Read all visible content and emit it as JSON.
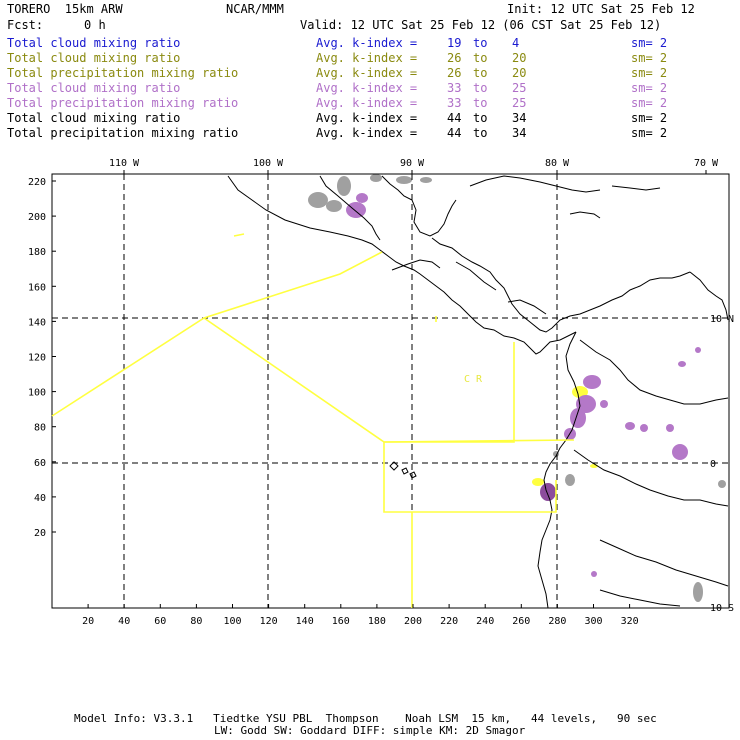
{
  "header": {
    "model": "TORERO  15km ARW",
    "center": "NCAR/MMM",
    "init": "Init: 12 UTC Sat 25 Feb 12",
    "fcst_label": "Fcst:",
    "fcst_value": "0 h",
    "valid": "Valid: 12 UTC Sat 25 Feb 12 (06 CST Sat 25 Feb 12)"
  },
  "legend": [
    {
      "field": "Total cloud mixing ratio",
      "kindex_label": "Avg. k-index =",
      "from": "19",
      "to_word": "to",
      "to": "4",
      "sm": "sm= 2",
      "color": "#1a1ad0"
    },
    {
      "field": "Total cloud mixing ratio",
      "kindex_label": "Avg. k-index =",
      "from": "26",
      "to_word": "to",
      "to": "20",
      "sm": "sm= 2",
      "color": "#8a8a10"
    },
    {
      "field": "Total precipitation mixing ratio",
      "kindex_label": "Avg. k-index =",
      "from": "26",
      "to_word": "to",
      "to": "20",
      "sm": "sm= 2",
      "color": "#8a8a10"
    },
    {
      "field": "Total cloud mixing ratio",
      "kindex_label": "Avg. k-index =",
      "from": "33",
      "to_word": "to",
      "to": "25",
      "sm": "sm= 2",
      "color": "#b070c8"
    },
    {
      "field": "Total precipitation mixing ratio",
      "kindex_label": "Avg. k-index =",
      "from": "33",
      "to_word": "to",
      "to": "25",
      "sm": "sm= 2",
      "color": "#b070c8"
    },
    {
      "field": "Total cloud mixing ratio",
      "kindex_label": "Avg. k-index =",
      "from": "44",
      "to_word": "to",
      "to": "34",
      "sm": "sm= 2",
      "color": "#000000"
    },
    {
      "field": "Total precipitation mixing ratio",
      "kindex_label": "Avg. k-index =",
      "from": "44",
      "to_word": "to",
      "to": "34",
      "sm": "sm= 2",
      "color": "#000000"
    }
  ],
  "map": {
    "lon_labels": [
      "110 W",
      "100 W",
      "90 W",
      "80 W",
      "70 W"
    ],
    "lat_labels": [
      "10 N",
      "0",
      "10 S"
    ],
    "x_ticks": [
      "20",
      "40",
      "60",
      "80",
      "100",
      "120",
      "140",
      "160",
      "180",
      "200",
      "220",
      "240",
      "260",
      "280",
      "300",
      "320"
    ],
    "y_ticks": [
      "220",
      "200",
      "180",
      "160",
      "140",
      "120",
      "100",
      "80",
      "60",
      "40",
      "20"
    ],
    "region_label": "C R",
    "colors": {
      "yellow": "#ffff40",
      "gray": "#a0a0a0",
      "purple": "#b478c8",
      "dark_purple": "#8c4c9c"
    }
  },
  "footer": {
    "line1": "Model Info: V3.3.1   Tiedtke YSU PBL  Thompson    Noah LSM  15 km,   44 levels,   90 sec",
    "line2": "LW: Godd SW: Goddard DIFF: simple KM: 2D Smagor"
  }
}
